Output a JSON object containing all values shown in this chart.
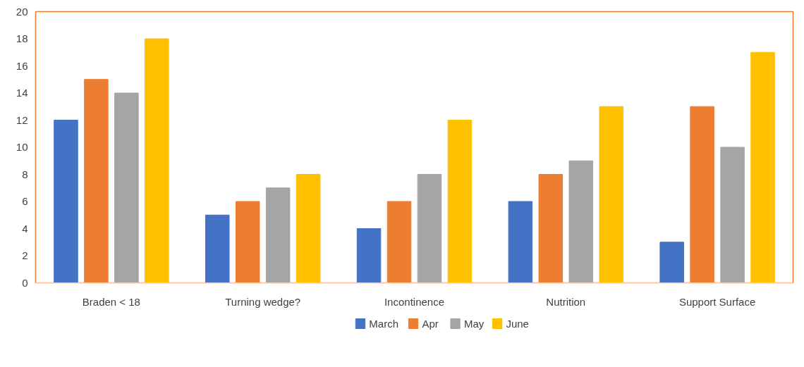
{
  "chart_data": {
    "type": "bar",
    "categories": [
      "Braden < 18",
      "Turning wedge?",
      "Incontinence",
      "Nutrition",
      "Support Surface"
    ],
    "series": [
      {
        "name": "March",
        "color": "#4472c4",
        "values": [
          12,
          5,
          4,
          6,
          3
        ]
      },
      {
        "name": "Apr",
        "color": "#ed7d31",
        "values": [
          15,
          6,
          6,
          8,
          13
        ]
      },
      {
        "name": "May",
        "color": "#a5a5a5",
        "values": [
          14,
          7,
          8,
          9,
          10
        ]
      },
      {
        "name": "June",
        "color": "#ffc000",
        "values": [
          18,
          8,
          12,
          13,
          17
        ]
      }
    ],
    "ylim": [
      0,
      20
    ],
    "yticks": [
      0,
      2,
      4,
      6,
      8,
      10,
      12,
      14,
      16,
      18,
      20
    ],
    "grid": false,
    "legend": "bottom"
  }
}
